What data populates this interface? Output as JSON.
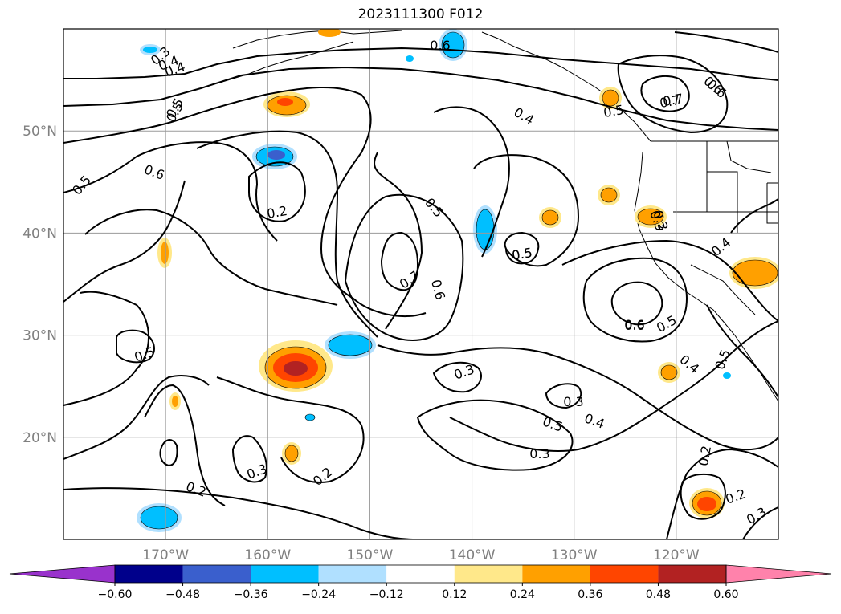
{
  "title": "2023111300 F012",
  "map": {
    "lon_range": [
      -180,
      -110
    ],
    "lat_range": [
      10,
      60
    ],
    "lon_ticks": [
      {
        "value": -170,
        "label": "170°W"
      },
      {
        "value": -160,
        "label": "160°W"
      },
      {
        "value": -150,
        "label": "150°W"
      },
      {
        "value": -140,
        "label": "140°W"
      },
      {
        "value": -130,
        "label": "130°W"
      },
      {
        "value": -120,
        "label": "120°W"
      }
    ],
    "lat_ticks": [
      {
        "value": 20,
        "label": "20°N"
      },
      {
        "value": 30,
        "label": "30°N"
      },
      {
        "value": 40,
        "label": "40°N"
      },
      {
        "value": 50,
        "label": "50°N"
      }
    ],
    "grid": true,
    "contour_labels": [
      "0.3",
      "0.4",
      "0.5",
      "0.6",
      "0.2",
      "0.5",
      "0.6",
      "0.5",
      "0.7",
      "0.6",
      "0.5",
      "0.4",
      "0.6",
      "0.7",
      "0.5",
      "0.3",
      "0.4",
      "0.5",
      "0.3",
      "0.2",
      "0.5",
      "0.3",
      "0.5",
      "0.6",
      "0.4",
      "0.3",
      "0.4",
      "0.5",
      "0.3",
      "0.2",
      "0.3",
      "0.2",
      "0.6",
      "0.4",
      "0.5",
      "0.7",
      "0.6",
      "0.3",
      "0.5",
      "0.2"
    ],
    "shaded_colors": {
      "positive": [
        "#ffe88a",
        "#ffa000",
        "#ff4500",
        "#b22222"
      ],
      "negative": [
        "#b0e0ff",
        "#00bfff",
        "#3a5fcd",
        "#00008b"
      ]
    }
  },
  "colorbar": {
    "ticks": [
      "−0.60",
      "−0.48",
      "−0.36",
      "−0.24",
      "−0.12",
      "0.12",
      "0.24",
      "0.36",
      "0.48",
      "0.60"
    ],
    "colors": [
      "#9932cc",
      "#00008b",
      "#3a5fcd",
      "#00bfff",
      "#b0e0ff",
      "#ffffff",
      "#ffe88a",
      "#ffa000",
      "#ff4500",
      "#b22222",
      "#ff82ab"
    ],
    "extend": "both"
  }
}
